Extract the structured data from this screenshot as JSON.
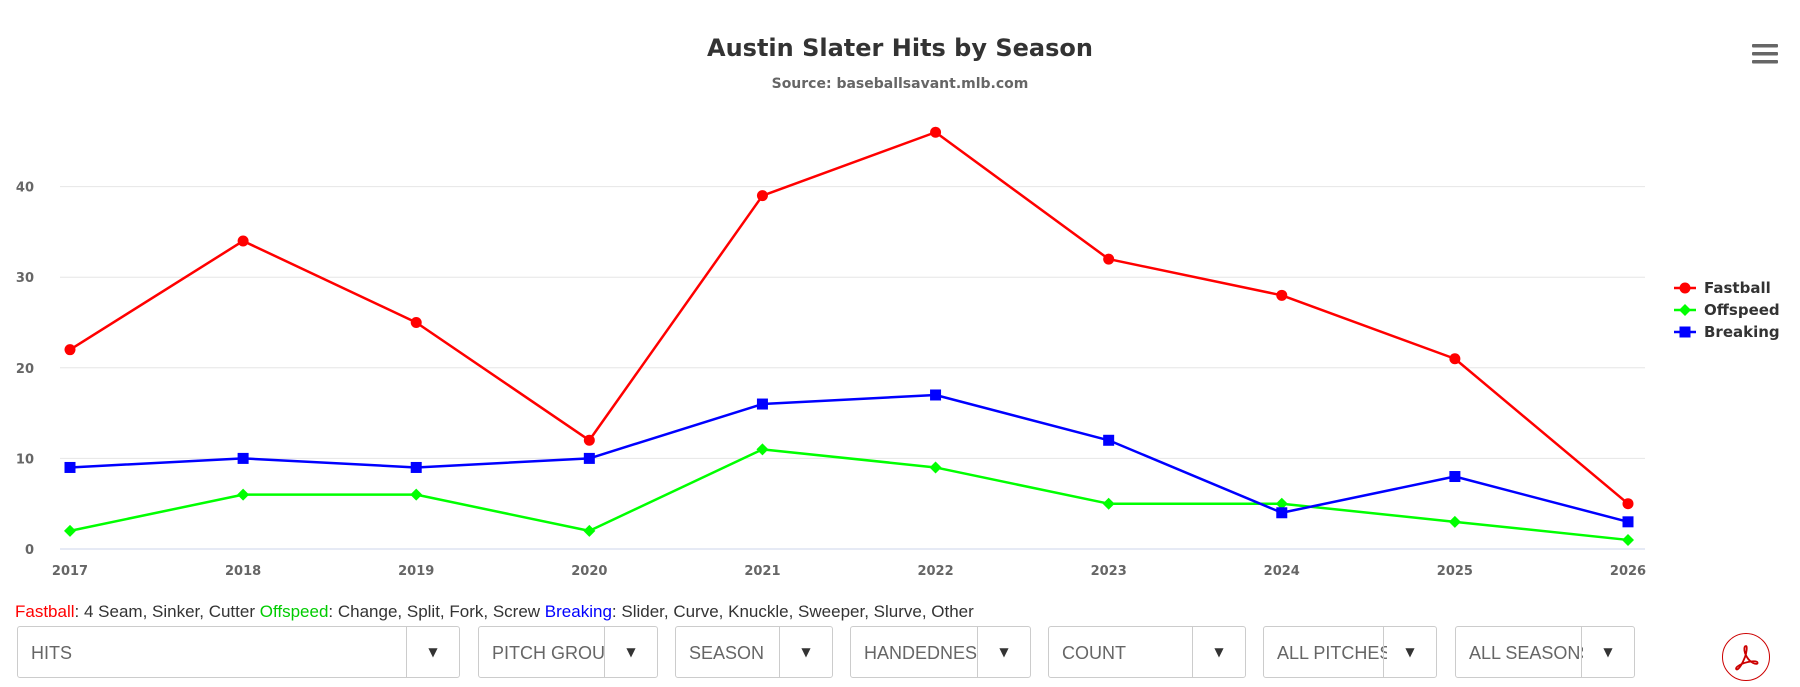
{
  "chart_data": {
    "type": "line",
    "title": "Austin Slater Hits by Season",
    "subtitle": "Source: baseballsavant.mlb.com",
    "x": [
      "2017",
      "2018",
      "2019",
      "2020",
      "2021",
      "2022",
      "2023",
      "2024",
      "2025",
      "2026"
    ],
    "ylim": [
      0,
      50
    ],
    "yticks": [
      0,
      10,
      20,
      30,
      40
    ],
    "grid": true,
    "legend_position": "right",
    "series": [
      {
        "name": "Fastball",
        "color": "#ff0000",
        "marker": "circle",
        "values": [
          22,
          34,
          25,
          12,
          39,
          46,
          32,
          28,
          21,
          5
        ]
      },
      {
        "name": "Offspeed",
        "color": "#00ff00",
        "marker": "diamond",
        "values": [
          2,
          6,
          6,
          2,
          11,
          9,
          5,
          5,
          3,
          1
        ]
      },
      {
        "name": "Breaking",
        "color": "#0000ff",
        "marker": "square",
        "values": [
          9,
          10,
          9,
          10,
          16,
          17,
          12,
          4,
          8,
          3
        ]
      }
    ]
  },
  "menu": {
    "icon": "hamburger-menu-icon"
  },
  "pitch_key": {
    "fastball_label": "Fastball",
    "fastball_desc": ": 4 Seam, Sinker, Cutter ",
    "offspeed_label": "Offspeed",
    "offspeed_desc": ": Change, Split, Fork, Screw ",
    "breaking_label": "Breaking",
    "breaking_desc": ": Slider, Curve, Knuckle, Sweeper, Slurve, Other",
    "fastball_color": "#ff0000",
    "offspeed_color": "#00cc00",
    "breaking_color": "#0000ff"
  },
  "filters": {
    "stat": "HITS",
    "pitch_group": "PITCH GROUP",
    "season": "SEASON",
    "handedness": "HANDEDNESS",
    "count": "COUNT",
    "pitches": "ALL PITCHES",
    "seasons": "ALL SEASONS",
    "arrow": "▼"
  },
  "pdf": {
    "icon": "adobe-pdf-icon"
  }
}
